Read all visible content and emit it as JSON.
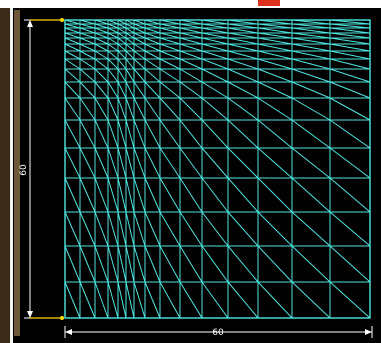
{
  "diagram": {
    "background": "#000000",
    "mesh_color": "#4fe6e0",
    "dimension_color": "#ffffff",
    "mesh": {
      "columns": 10,
      "rows": 15
    },
    "dimensions": {
      "vertical_label": "60",
      "horizontal_label": "60"
    }
  }
}
